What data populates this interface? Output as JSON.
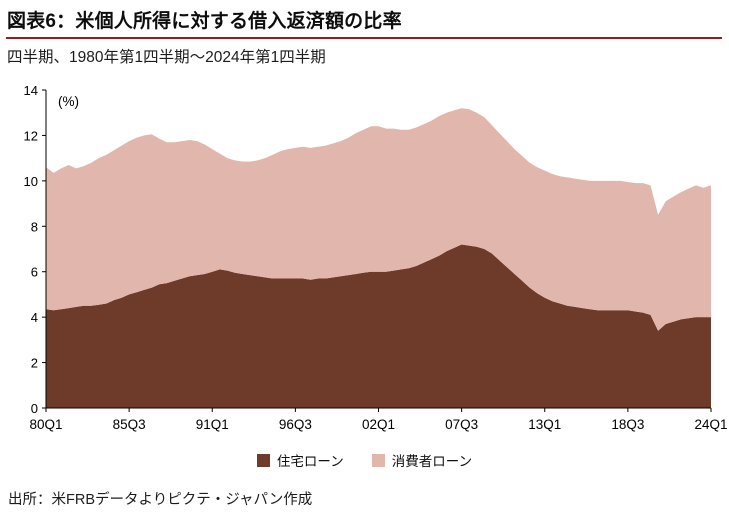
{
  "header": {
    "title": "図表6：米個人所得に対する借入返済額の比率",
    "subtitle": "四半期、1980年第1四半期～2024年第1四半期"
  },
  "source": "出所：米FRBデータよりピクテ・ジャパン作成",
  "colors": {
    "title_rule": "#991b1b",
    "axis": "#000000",
    "mortgage": "#6e3b2b",
    "consumer": "#e1b6ac"
  },
  "chart_data": {
    "type": "area",
    "stacked": true,
    "title": "図表6：米個人所得に対する借入返済額の比率",
    "subtitle": "四半期、1980年第1四半期～2024年第1四半期",
    "unit_label": "(%)",
    "ylim": [
      0,
      14
    ],
    "yticks": [
      0,
      2,
      4,
      6,
      8,
      10,
      12,
      14
    ],
    "grid": false,
    "legend_position": "bottom",
    "x_tick_labels": [
      "80Q1",
      "85Q3",
      "91Q1",
      "96Q3",
      "02Q1",
      "07Q3",
      "13Q1",
      "18Q3",
      "24Q1"
    ],
    "x_tick_indices": [
      0,
      11,
      22,
      33,
      44,
      55,
      66,
      77,
      88
    ],
    "categories": [
      "80Q1",
      "80Q3",
      "81Q1",
      "81Q3",
      "82Q1",
      "82Q3",
      "83Q1",
      "83Q3",
      "84Q1",
      "84Q3",
      "85Q1",
      "85Q3",
      "86Q1",
      "86Q3",
      "87Q1",
      "87Q3",
      "88Q1",
      "88Q3",
      "89Q1",
      "89Q3",
      "90Q1",
      "90Q3",
      "91Q1",
      "91Q3",
      "92Q1",
      "92Q3",
      "93Q1",
      "93Q3",
      "94Q1",
      "94Q3",
      "95Q1",
      "95Q3",
      "96Q1",
      "96Q3",
      "97Q1",
      "97Q3",
      "98Q1",
      "98Q3",
      "99Q1",
      "99Q3",
      "00Q1",
      "00Q3",
      "01Q1",
      "01Q3",
      "02Q1",
      "02Q3",
      "03Q1",
      "03Q3",
      "04Q1",
      "04Q3",
      "05Q1",
      "05Q3",
      "06Q1",
      "06Q3",
      "07Q1",
      "07Q3",
      "08Q1",
      "08Q3",
      "09Q1",
      "09Q3",
      "10Q1",
      "10Q3",
      "11Q1",
      "11Q3",
      "12Q1",
      "12Q3",
      "13Q1",
      "13Q3",
      "14Q1",
      "14Q3",
      "15Q1",
      "15Q3",
      "16Q1",
      "16Q3",
      "17Q1",
      "17Q3",
      "18Q1",
      "18Q3",
      "19Q1",
      "19Q3",
      "20Q1",
      "20Q3",
      "21Q1",
      "21Q3",
      "22Q1",
      "22Q3",
      "23Q1",
      "23Q3",
      "24Q1"
    ],
    "series": [
      {
        "name": "住宅ローン",
        "color": "#6e3b2b",
        "values": [
          4.35,
          4.3,
          4.35,
          4.4,
          4.45,
          4.5,
          4.5,
          4.55,
          4.6,
          4.75,
          4.85,
          5.0,
          5.1,
          5.2,
          5.3,
          5.45,
          5.5,
          5.6,
          5.7,
          5.8,
          5.85,
          5.9,
          6.0,
          6.1,
          6.05,
          5.95,
          5.9,
          5.85,
          5.8,
          5.75,
          5.7,
          5.7,
          5.7,
          5.7,
          5.7,
          5.65,
          5.7,
          5.7,
          5.75,
          5.8,
          5.85,
          5.9,
          5.95,
          6.0,
          6.0,
          6.0,
          6.05,
          6.1,
          6.15,
          6.25,
          6.4,
          6.55,
          6.7,
          6.9,
          7.05,
          7.2,
          7.15,
          7.1,
          7.0,
          6.8,
          6.5,
          6.2,
          5.9,
          5.6,
          5.3,
          5.05,
          4.85,
          4.7,
          4.6,
          4.5,
          4.45,
          4.4,
          4.35,
          4.3,
          4.3,
          4.3,
          4.3,
          4.3,
          4.25,
          4.2,
          4.1,
          3.4,
          3.7,
          3.8,
          3.9,
          3.95,
          4.0,
          4.0,
          4.0
        ]
      },
      {
        "name": "消費者ローン",
        "color": "#e1b6ac",
        "values": [
          6.25,
          6.05,
          6.2,
          6.3,
          6.1,
          6.15,
          6.3,
          6.45,
          6.55,
          6.6,
          6.7,
          6.75,
          6.8,
          6.8,
          6.75,
          6.4,
          6.2,
          6.1,
          6.05,
          6.0,
          5.9,
          5.7,
          5.4,
          5.1,
          4.95,
          4.95,
          4.95,
          5.0,
          5.1,
          5.25,
          5.45,
          5.6,
          5.7,
          5.75,
          5.8,
          5.8,
          5.8,
          5.85,
          5.9,
          5.95,
          6.05,
          6.2,
          6.3,
          6.4,
          6.4,
          6.3,
          6.25,
          6.15,
          6.1,
          6.1,
          6.1,
          6.1,
          6.15,
          6.1,
          6.05,
          6.0,
          6.0,
          5.9,
          5.8,
          5.65,
          5.6,
          5.55,
          5.5,
          5.5,
          5.5,
          5.55,
          5.6,
          5.6,
          5.6,
          5.65,
          5.65,
          5.65,
          5.65,
          5.7,
          5.7,
          5.7,
          5.7,
          5.65,
          5.65,
          5.7,
          5.7,
          5.1,
          5.4,
          5.5,
          5.6,
          5.7,
          5.8,
          5.7,
          5.8
        ]
      }
    ]
  }
}
